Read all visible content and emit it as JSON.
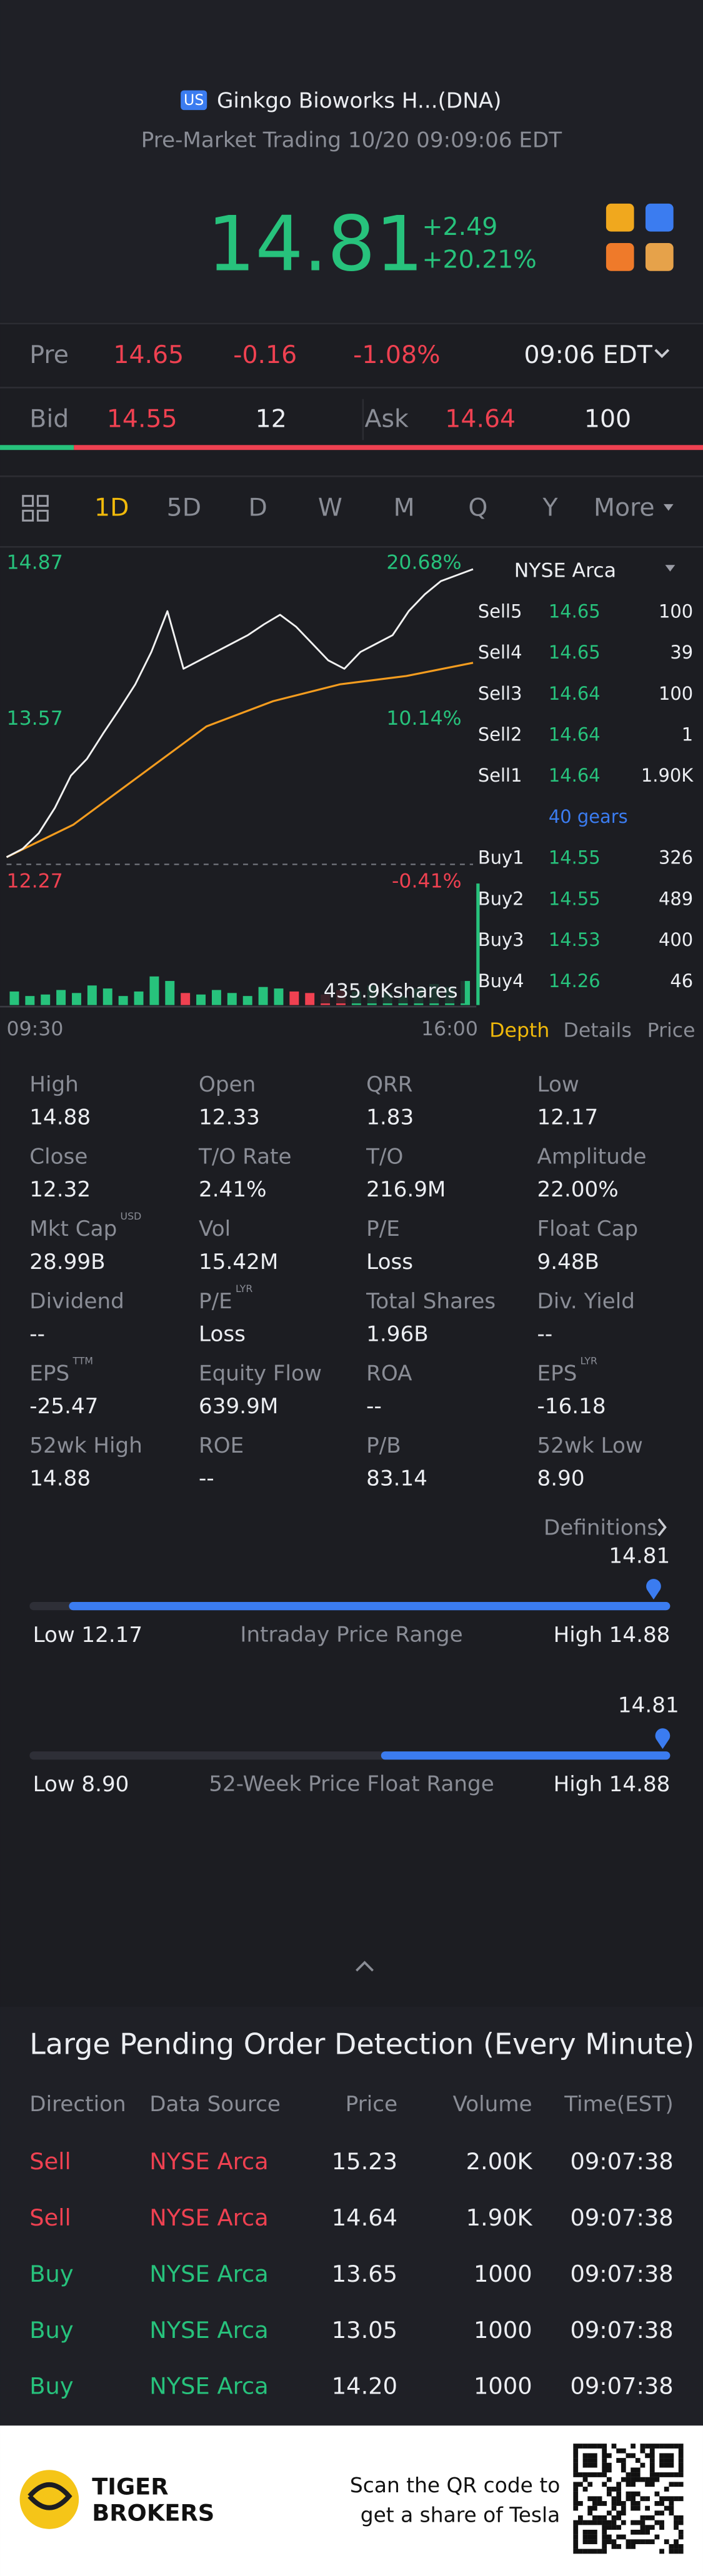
{
  "header": {
    "market_badge": "US",
    "name": "Ginkgo Bioworks H...(DNA)",
    "status": "Pre-Market Trading 10/20 09:09:06 EDT"
  },
  "quote": {
    "price": "14.81",
    "change": "+2.49",
    "change_percent": "+20.21%"
  },
  "pre_market": {
    "label": "Pre",
    "price": "14.65",
    "change": "-0.16",
    "change_percent": "-1.08%",
    "time": "09:06 EDT"
  },
  "bid_ask": {
    "bid_label": "Bid",
    "bid_price": "14.55",
    "bid_size": "12",
    "ask_label": "Ask",
    "ask_price": "14.64",
    "ask_size": "100"
  },
  "period_tabs": [
    "1D",
    "5D",
    "D",
    "W",
    "M",
    "Q",
    "Y",
    "More"
  ],
  "intraday_chart": {
    "type": "line",
    "ylim": [
      12.27,
      14.87
    ],
    "yticks": [
      12.27,
      13.57,
      14.87
    ],
    "percent_labels": [
      "-0.41%",
      "10.14%",
      "20.68%"
    ],
    "x_labels": [
      "09:30",
      "16:00"
    ],
    "reference_line": 12.32,
    "price": [
      12.38,
      12.45,
      12.58,
      12.79,
      13.06,
      13.2,
      13.41,
      13.61,
      13.82,
      14.09,
      14.43,
      13.95,
      14.02,
      14.09,
      14.16,
      14.23,
      14.32,
      14.4,
      14.3,
      14.16,
      14.02,
      13.95,
      14.09,
      14.16,
      14.23,
      14.43,
      14.57,
      14.68,
      14.73,
      14.78
    ],
    "price_color": "#f2f2f2",
    "average": [
      12.38,
      12.65,
      13.06,
      13.47,
      13.68,
      13.82,
      13.89,
      14.0
    ],
    "average_color": "#f39c1f",
    "volume": [
      45,
      30,
      35,
      50,
      40,
      65,
      55,
      30,
      45,
      95,
      80,
      40,
      35,
      50,
      40,
      30,
      60,
      55,
      45,
      40,
      35,
      50,
      45,
      65,
      40,
      30,
      55,
      70,
      60,
      80
    ],
    "volume_ylim": [
      0,
      120
    ],
    "volume_label": "435.9Kshares"
  },
  "order_book": {
    "exchange": "NYSE Arca",
    "asks": [
      {
        "label": "Sell5",
        "price": "14.65",
        "size": "100"
      },
      {
        "label": "Sell4",
        "price": "14.65",
        "size": "39"
      },
      {
        "label": "Sell3",
        "price": "14.64",
        "size": "100"
      },
      {
        "label": "Sell2",
        "price": "14.64",
        "size": "1"
      },
      {
        "label": "Sell1",
        "price": "14.64",
        "size": "1.90K"
      }
    ],
    "gears": "40 gears",
    "bids": [
      {
        "label": "Buy1",
        "price": "14.55",
        "size": "326"
      },
      {
        "label": "Buy2",
        "price": "14.55",
        "size": "489"
      },
      {
        "label": "Buy3",
        "price": "14.53",
        "size": "400"
      },
      {
        "label": "Buy4",
        "price": "14.26",
        "size": "46"
      }
    ],
    "tabs": [
      "Depth",
      "Details",
      "Price"
    ]
  },
  "stats": [
    [
      {
        "label": "High",
        "value": "14.88"
      },
      {
        "label": "Open",
        "value": "12.33"
      },
      {
        "label": "QRR",
        "value": "1.83"
      },
      {
        "label": "Low",
        "value": "12.17"
      }
    ],
    [
      {
        "label": "Close",
        "value": "12.32"
      },
      {
        "label": "T/O Rate",
        "value": "2.41%"
      },
      {
        "label": "T/O",
        "value": "216.9M"
      },
      {
        "label": "Amplitude",
        "value": "22.00%"
      }
    ],
    [
      {
        "label": "Mkt Cap",
        "sup": "USD",
        "value": "28.99B"
      },
      {
        "label": "Vol",
        "value": "15.42M"
      },
      {
        "label": "P/E",
        "value": "Loss"
      },
      {
        "label": "Float Cap",
        "value": "9.48B"
      }
    ],
    [
      {
        "label": "Dividend",
        "value": "--"
      },
      {
        "label": "P/E",
        "sup": "LYR",
        "value": "Loss"
      },
      {
        "label": "Total Shares",
        "value": "1.96B"
      },
      {
        "label": "Div. Yield",
        "value": "--"
      }
    ],
    [
      {
        "label": "EPS",
        "sup": "TTM",
        "value": "-25.47"
      },
      {
        "label": "Equity Flow",
        "value": "639.9M"
      },
      {
        "label": "ROA",
        "value": "--"
      },
      {
        "label": "EPS",
        "sup": "LYR",
        "value": "-16.18"
      }
    ],
    [
      {
        "label": "52wk High",
        "value": "14.88"
      },
      {
        "label": "ROE",
        "value": "--"
      },
      {
        "label": "P/B",
        "value": "83.14"
      },
      {
        "label": "52wk Low",
        "value": "8.90"
      }
    ]
  ],
  "definitions": "Definitions",
  "ranges": [
    {
      "title": "Intraday Price Range",
      "low_label": "Low",
      "low": "12.17",
      "high_label": "High",
      "high": "14.88",
      "current": "14.81"
    },
    {
      "title": "52-Week Price Float Range",
      "low_label": "Low",
      "low": "8.90",
      "high_label": "High",
      "high": "14.88",
      "current": "14.81"
    }
  ],
  "pending_orders": {
    "title": "Large Pending Order Detection (Every Minute)",
    "columns": [
      "Direction",
      "Data Source",
      "Price",
      "Volume",
      "Time(EST)"
    ],
    "rows": [
      {
        "cells": [
          "Sell",
          "NYSE Arca",
          "15.23",
          "2.00K",
          "09:07:38"
        ],
        "color": "#ef4151"
      },
      {
        "cells": [
          "Sell",
          "NYSE Arca",
          "14.64",
          "1.90K",
          "09:07:38"
        ],
        "color": "#ef4151"
      },
      {
        "cells": [
          "Buy",
          "NYSE Arca",
          "13.65",
          "1000",
          "09:07:38"
        ],
        "color": "#27c27c"
      },
      {
        "cells": [
          "Buy",
          "NYSE Arca",
          "13.05",
          "1000",
          "09:07:38"
        ],
        "color": "#27c27c"
      },
      {
        "cells": [
          "Buy",
          "NYSE Arca",
          "14.20",
          "1000",
          "09:07:38"
        ],
        "color": "#27c27c"
      }
    ]
  },
  "footer": {
    "brand": [
      "TIGER",
      "BROKERS"
    ],
    "promo": [
      "Scan the QR code to",
      "get a share of Tesla"
    ]
  }
}
